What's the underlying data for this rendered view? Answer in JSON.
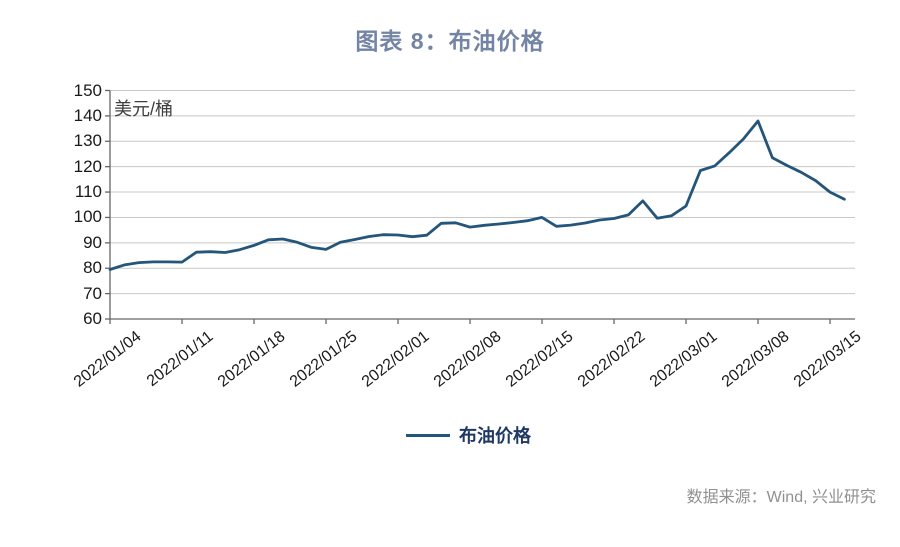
{
  "page": {
    "title": "图表 8：布油价格",
    "source_note": "数据来源：Wind, 兴业研究"
  },
  "legend": {
    "label": "布油价格"
  },
  "colors": {
    "title_text": "#7384A4",
    "line": "#24557A",
    "legend_text": "#1F3864",
    "grid": "#C8C8C8",
    "axis": "#666666",
    "tick_text": "#1A1A1A",
    "source_text": "#909090",
    "unit_text": "#404040"
  },
  "chart_data": {
    "type": "line",
    "title": "图表 8：布油价格",
    "unit_label": "美元/桶",
    "xlabel": "",
    "ylabel": "美元/桶",
    "ylim": [
      60,
      150
    ],
    "ytick_step": 10,
    "grid": "horizontal",
    "legend_position": "bottom",
    "xticks": [
      "2022/01/04",
      "2022/01/11",
      "2022/01/18",
      "2022/01/25",
      "2022/02/01",
      "2022/02/08",
      "2022/02/15",
      "2022/02/22",
      "2022/03/01",
      "2022/03/08",
      "2022/03/15"
    ],
    "xtick_every": 5,
    "x": [
      "2022/01/04",
      "2022/01/05",
      "2022/01/06",
      "2022/01/07",
      "2022/01/10",
      "2022/01/11",
      "2022/01/12",
      "2022/01/13",
      "2022/01/14",
      "2022/01/17",
      "2022/01/18",
      "2022/01/19",
      "2022/01/20",
      "2022/01/21",
      "2022/01/24",
      "2022/01/25",
      "2022/01/26",
      "2022/01/27",
      "2022/01/28",
      "2022/01/31",
      "2022/02/01",
      "2022/02/02",
      "2022/02/03",
      "2022/02/04",
      "2022/02/07",
      "2022/02/08",
      "2022/02/09",
      "2022/02/10",
      "2022/02/11",
      "2022/02/14",
      "2022/02/15",
      "2022/02/16",
      "2022/02/17",
      "2022/02/18",
      "2022/02/21",
      "2022/02/22",
      "2022/02/23",
      "2022/02/24",
      "2022/02/25",
      "2022/02/28",
      "2022/03/01",
      "2022/03/02",
      "2022/03/03",
      "2022/03/04",
      "2022/03/07",
      "2022/03/08",
      "2022/03/09",
      "2022/03/10",
      "2022/03/11",
      "2022/03/14",
      "2022/03/15",
      "2022/03/16"
    ],
    "series": [
      {
        "name": "布油价格",
        "color": "#24557A",
        "values": [
          79.5,
          81.3,
          82.2,
          82.5,
          82.5,
          82.4,
          86.3,
          86.5,
          86.2,
          87.3,
          89.0,
          91.2,
          91.5,
          90.2,
          88.2,
          87.4,
          90.2,
          91.3,
          92.5,
          93.2,
          93.1,
          92.4,
          93.0,
          97.7,
          97.9,
          96.2,
          96.9,
          97.4,
          98.0,
          98.7,
          100.0,
          96.5,
          97.0,
          97.8,
          99.0,
          99.6,
          101.0,
          106.5,
          99.7,
          100.7,
          104.5,
          118.5,
          120.3,
          125.5,
          131.0,
          138.0,
          123.5,
          120.5,
          117.8,
          114.5,
          110.0,
          107.2
        ]
      }
    ]
  }
}
